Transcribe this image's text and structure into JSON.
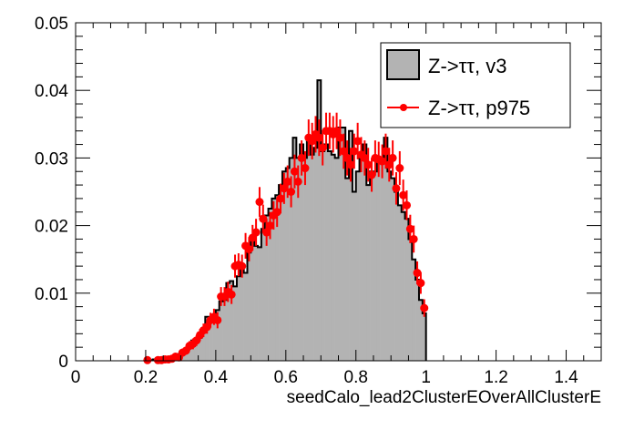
{
  "chart_data": {
    "type": "histogram",
    "title": "",
    "xlabel": "seedCalo_lead2ClusterEOverAllClusterE",
    "ylabel": "",
    "xlim": [
      0,
      1.5
    ],
    "ylim": [
      0,
      0.05
    ],
    "xticks": [
      "0",
      "0.2",
      "0.4",
      "0.6",
      "0.8",
      "1",
      "1.2",
      "1.4"
    ],
    "yticks": [
      "0",
      "0.01",
      "0.02",
      "0.03",
      "0.04",
      "0.05"
    ],
    "legend": {
      "placement": "top-right",
      "entries": [
        "Z->ττ, v3",
        "Z->ττ, p975"
      ]
    },
    "hist": {
      "name": "Z->ττ, v3",
      "bin_start": 0.2,
      "bin_width": 0.01,
      "fill": "#b3b3b3",
      "values": [
        0.0002,
        0.0001,
        0.0002,
        0.0002,
        0.0003,
        0.0004,
        0.0004,
        0.0005,
        0.0008,
        0.001,
        0.0012,
        0.0015,
        0.002,
        0.003,
        0.0032,
        0.0034,
        0.0045,
        0.0065,
        0.0062,
        0.006,
        0.0075,
        0.0088,
        0.009,
        0.0115,
        0.0118,
        0.011,
        0.0125,
        0.0135,
        0.013,
        0.016,
        0.018,
        0.017,
        0.0168,
        0.0195,
        0.0215,
        0.0225,
        0.024,
        0.0245,
        0.026,
        0.028,
        0.0285,
        0.03,
        0.033,
        0.03,
        0.032,
        0.03,
        0.033,
        0.0305,
        0.0315,
        0.0415,
        0.031,
        0.032,
        0.031,
        0.0305,
        0.03,
        0.0345,
        0.0345,
        0.027,
        0.034,
        0.025,
        0.028,
        0.03,
        0.032,
        0.026,
        0.028,
        0.028,
        0.03,
        0.03,
        0.033,
        0.028,
        0.027,
        0.025,
        0.023,
        0.022,
        0.021,
        0.018,
        0.015,
        0.012,
        0.009,
        0.007
      ]
    },
    "points": {
      "name": "Z->ττ, p975",
      "color": "#ff0000",
      "x": [
        0.205,
        0.235,
        0.245,
        0.255,
        0.265,
        0.275,
        0.285,
        0.295,
        0.305,
        0.315,
        0.325,
        0.335,
        0.345,
        0.355,
        0.365,
        0.375,
        0.385,
        0.395,
        0.405,
        0.415,
        0.425,
        0.435,
        0.445,
        0.455,
        0.465,
        0.475,
        0.485,
        0.495,
        0.505,
        0.515,
        0.525,
        0.535,
        0.545,
        0.555,
        0.565,
        0.575,
        0.585,
        0.595,
        0.605,
        0.615,
        0.625,
        0.635,
        0.645,
        0.655,
        0.665,
        0.675,
        0.685,
        0.695,
        0.705,
        0.715,
        0.725,
        0.735,
        0.745,
        0.755,
        0.765,
        0.775,
        0.785,
        0.795,
        0.805,
        0.815,
        0.825,
        0.835,
        0.845,
        0.855,
        0.865,
        0.875,
        0.885,
        0.895,
        0.905,
        0.915,
        0.925,
        0.935,
        0.945,
        0.955,
        0.965,
        0.975,
        0.985,
        0.995
      ],
      "y": [
        0.0001,
        0.0001,
        0.0001,
        0.0002,
        0.0002,
        0.0003,
        0.0006,
        0.0005,
        0.0012,
        0.0015,
        0.0022,
        0.0025,
        0.003,
        0.0038,
        0.0045,
        0.005,
        0.006,
        0.0065,
        0.006,
        0.0095,
        0.0095,
        0.0102,
        0.0098,
        0.014,
        0.0142,
        0.014,
        0.017,
        0.0165,
        0.0182,
        0.019,
        0.0235,
        0.021,
        0.019,
        0.02,
        0.0215,
        0.022,
        0.024,
        0.0255,
        0.0265,
        0.025,
        0.028,
        0.0265,
        0.03,
        0.0285,
        0.033,
        0.0325,
        0.0335,
        0.033,
        0.0315,
        0.034,
        0.034,
        0.0335,
        0.034,
        0.033,
        0.031,
        0.03,
        0.029,
        0.031,
        0.0325,
        0.0305,
        0.03,
        0.029,
        0.0275,
        0.03,
        0.0298,
        0.0295,
        0.031,
        0.029,
        0.03,
        0.0255,
        0.0285,
        0.0245,
        0.023,
        0.0195,
        0.018,
        0.013,
        0.0115,
        0.0078
      ],
      "err": [
        0.0002,
        0.0002,
        0.0002,
        0.0002,
        0.0003,
        0.0003,
        0.0004,
        0.0004,
        0.0006,
        0.0006,
        0.0007,
        0.0008,
        0.0008,
        0.0009,
        0.001,
        0.001,
        0.0011,
        0.0012,
        0.0012,
        0.0014,
        0.0014,
        0.0015,
        0.0014,
        0.0017,
        0.0017,
        0.0017,
        0.0019,
        0.0018,
        0.0019,
        0.002,
        0.0022,
        0.0021,
        0.002,
        0.002,
        0.0021,
        0.0022,
        0.0022,
        0.0023,
        0.0024,
        0.0023,
        0.0025,
        0.0024,
        0.0026,
        0.0025,
        0.0027,
        0.0027,
        0.0027,
        0.0027,
        0.0026,
        0.0027,
        0.0027,
        0.0027,
        0.0027,
        0.0027,
        0.0026,
        0.0026,
        0.0025,
        0.0026,
        0.0027,
        0.0026,
        0.0026,
        0.0025,
        0.0025,
        0.0026,
        0.0026,
        0.0025,
        0.0026,
        0.0025,
        0.0026,
        0.0024,
        0.0025,
        0.0023,
        0.0022,
        0.0021,
        0.002,
        0.0017,
        0.0016,
        0.0013
      ]
    }
  }
}
